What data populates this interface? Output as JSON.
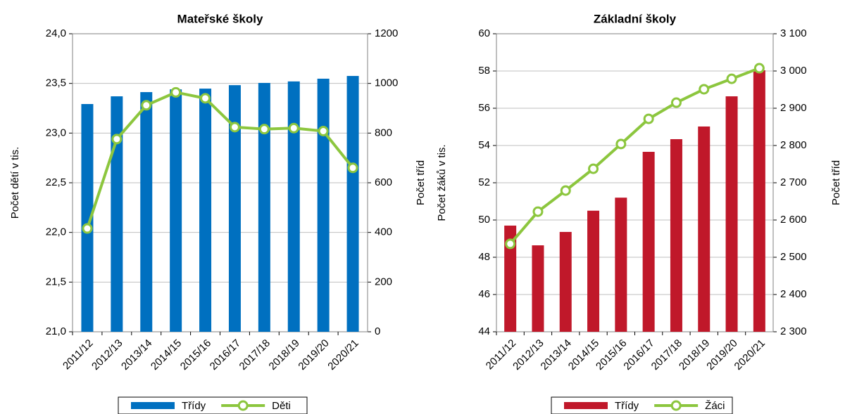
{
  "chart_data": [
    {
      "type": "combo",
      "title": "Mateřské školy",
      "ylabel": "Počet dětí v tis.",
      "y2label": "Počet tříd",
      "categories": [
        "2011/12",
        "2012/13",
        "2013/14",
        "2014/15",
        "2015/16",
        "2016/17",
        "2017/18",
        "2018/19",
        "2019/20",
        "2020/21"
      ],
      "series": [
        {
          "name": "Třídy",
          "type": "bar",
          "axis": "y2",
          "color": "#0070c0",
          "values": [
            917,
            948,
            965,
            976,
            979,
            993,
            1002,
            1008,
            1019,
            1030
          ]
        },
        {
          "name": "Děti",
          "type": "line",
          "axis": "y",
          "color": "#8cc63e",
          "values": [
            22.04,
            22.94,
            23.28,
            23.41,
            23.35,
            23.06,
            23.04,
            23.05,
            23.02,
            22.65
          ]
        }
      ],
      "ylim": [
        21,
        24
      ],
      "yticks": [
        {
          "value": 21,
          "label": "21,0"
        },
        {
          "value": 21.5,
          "label": "21,5"
        },
        {
          "value": 22,
          "label": "22,0"
        },
        {
          "value": 22.5,
          "label": "22,5"
        },
        {
          "value": 23,
          "label": "23,0"
        },
        {
          "value": 23.5,
          "label": "23,5"
        },
        {
          "value": 24,
          "label": "24,0"
        }
      ],
      "y2lim": [
        0,
        1200
      ],
      "y2ticks": [
        0,
        200,
        400,
        600,
        800,
        1000,
        1200
      ],
      "grid": true
    },
    {
      "type": "combo",
      "title": "Základní školy",
      "ylabel": "Počet žáků v tis.",
      "y2label": "Počet tříd",
      "categories": [
        "2011/12",
        "2012/13",
        "2013/14",
        "2014/15",
        "2015/16",
        "2016/17",
        "2017/18",
        "2018/19",
        "2019/20",
        "2020/21"
      ],
      "series": [
        {
          "name": "Třídy",
          "type": "bar",
          "axis": "y2",
          "color": "#c0182a",
          "values": [
            2585,
            2532,
            2568,
            2625,
            2660,
            2783,
            2817,
            2851,
            2932,
            3002
          ]
        },
        {
          "name": "Žáci",
          "type": "line",
          "axis": "y",
          "color": "#8cc63e",
          "values": [
            48.72,
            50.45,
            51.58,
            52.75,
            54.08,
            55.43,
            56.3,
            57.02,
            57.58,
            58.15
          ]
        }
      ],
      "ylim": [
        44,
        60
      ],
      "yticks": [
        44,
        46,
        48,
        50,
        52,
        54,
        56,
        58,
        60
      ],
      "y2lim": [
        2300,
        3100
      ],
      "y2ticks": [
        {
          "value": 2300,
          "label": "2 300"
        },
        {
          "value": 2400,
          "label": "2 400"
        },
        {
          "value": 2500,
          "label": "2 500"
        },
        {
          "value": 2600,
          "label": "2 600"
        },
        {
          "value": 2700,
          "label": "2 700"
        },
        {
          "value": 2800,
          "label": "2 800"
        },
        {
          "value": 2900,
          "label": "2 900"
        },
        {
          "value": 3000,
          "label": "3 000"
        },
        {
          "value": 3100,
          "label": "3 100"
        }
      ],
      "grid": true
    }
  ]
}
